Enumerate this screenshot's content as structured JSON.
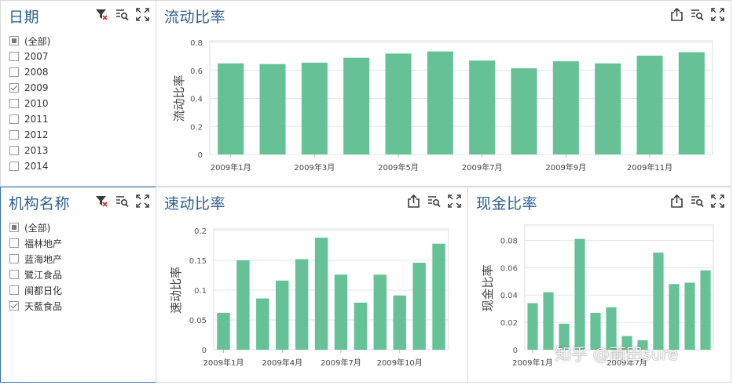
{
  "colors": {
    "bar": "#66c296",
    "title": "#2e5f8f",
    "grid": "#e6e6e6",
    "selected_border": "#3a6fa4"
  },
  "date_filter": {
    "title": "日期",
    "items": [
      {
        "label": "(全部)",
        "state": "partial"
      },
      {
        "label": "2007",
        "state": "unchecked"
      },
      {
        "label": "2008",
        "state": "unchecked"
      },
      {
        "label": "2009",
        "state": "checked"
      },
      {
        "label": "2010",
        "state": "unchecked"
      },
      {
        "label": "2011",
        "state": "unchecked"
      },
      {
        "label": "2012",
        "state": "unchecked"
      },
      {
        "label": "2013",
        "state": "unchecked"
      },
      {
        "label": "2014",
        "state": "unchecked"
      }
    ]
  },
  "org_filter": {
    "title": "机构名称",
    "items": [
      {
        "label": "(全部)",
        "state": "partial"
      },
      {
        "label": "福林地产",
        "state": "unchecked"
      },
      {
        "label": "蓝海地产",
        "state": "unchecked"
      },
      {
        "label": "鷺江食品",
        "state": "unchecked"
      },
      {
        "label": "闽都日化",
        "state": "unchecked"
      },
      {
        "label": "天藍食品",
        "state": "checked"
      }
    ]
  },
  "charts": {
    "current": {
      "title": "流动比率"
    },
    "quick": {
      "title": "速动比率"
    },
    "cash": {
      "title": "现金比率"
    }
  },
  "chart_data": [
    {
      "id": "current",
      "type": "bar",
      "ylabel": "流动比率",
      "ylim": [
        0,
        0.8
      ],
      "yticks": [
        "0",
        "0.2",
        "0.4",
        "0.6",
        "0.8"
      ],
      "ytick_values": [
        0,
        0.2,
        0.4,
        0.6,
        0.8
      ],
      "categories": [
        "2009年1月",
        "2009年2月",
        "2009年3月",
        "2009年4月",
        "2009年5月",
        "2009年6月",
        "2009年7月",
        "2009年8月",
        "2009年9月",
        "2009年10月",
        "2009年11月",
        "2009年12月"
      ],
      "xtick_labels": [
        "2009年1月",
        "",
        "2009年3月",
        "",
        "2009年5月",
        "",
        "2009年7月",
        "",
        "2009年9月",
        "",
        "2009年11月",
        ""
      ],
      "values": [
        0.65,
        0.645,
        0.655,
        0.69,
        0.72,
        0.735,
        0.67,
        0.615,
        0.665,
        0.65,
        0.705,
        0.73
      ]
    },
    {
      "id": "quick",
      "type": "bar",
      "ylabel": "速动比率",
      "ylim": [
        0,
        0.2
      ],
      "yticks": [
        "0",
        "0.05",
        "0.1",
        "0.15",
        "0.2"
      ],
      "ytick_values": [
        0,
        0.05,
        0.1,
        0.15,
        0.2
      ],
      "categories": [
        "2009年1月",
        "2009年2月",
        "2009年3月",
        "2009年4月",
        "2009年5月",
        "2009年6月",
        "2009年7月",
        "2009年8月",
        "2009年9月",
        "2009年10月",
        "2009年11月",
        "2009年12月"
      ],
      "xtick_labels": [
        "2009年1月",
        "",
        "",
        "2009年4月",
        "",
        "",
        "2009年7月",
        "",
        "",
        "2009年10月",
        "",
        ""
      ],
      "values": [
        0.062,
        0.15,
        0.086,
        0.116,
        0.152,
        0.188,
        0.126,
        0.079,
        0.126,
        0.091,
        0.146,
        0.178
      ]
    },
    {
      "id": "cash",
      "type": "bar",
      "ylabel": "现金比率",
      "ylim": [
        0,
        0.09
      ],
      "yticks": [
        "0",
        "0.02",
        "0.04",
        "0.06",
        "0.08"
      ],
      "ytick_values": [
        0,
        0.02,
        0.04,
        0.06,
        0.08
      ],
      "categories": [
        "2009年1月",
        "2009年2月",
        "2009年3月",
        "2009年4月",
        "2009年5月",
        "2009年6月",
        "2009年7月",
        "2009年8月",
        "2009年9月",
        "2009年10月",
        "2009年11月",
        "2009年12月"
      ],
      "xtick_labels": [
        "2009年1月",
        "",
        "",
        "",
        "",
        "",
        "2009年7月",
        "",
        "",
        "",
        "",
        ""
      ],
      "values": [
        0.034,
        0.042,
        0.019,
        0.081,
        0.027,
        0.031,
        0.01,
        0.007,
        0.071,
        0.048,
        0.049,
        0.058
      ]
    }
  ],
  "watermark": "知乎 @雨田sure"
}
